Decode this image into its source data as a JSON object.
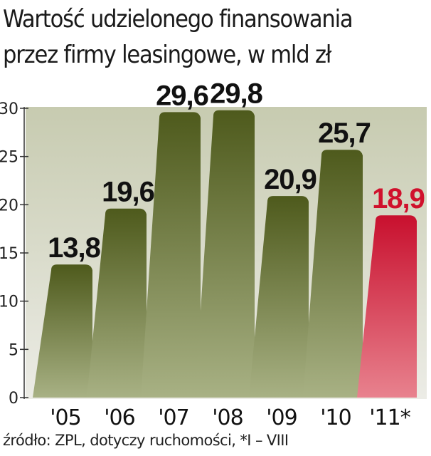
{
  "title_line1": "Wartość udzielonego finansowania",
  "title_line2": "przez firmy leasingowe, w mld zł",
  "source": "źródło: ZPL, dotyczy ruchomości, *I – VIII",
  "chart_data": {
    "type": "bar",
    "categories": [
      "'05",
      "'06",
      "'07",
      "'08",
      "'09",
      "'10",
      "'11*"
    ],
    "values": [
      13.8,
      19.6,
      29.6,
      29.8,
      20.9,
      25.7,
      18.9
    ],
    "value_labels": [
      "13,8",
      "19,6",
      "29,6",
      "29,8",
      "20,9",
      "25,7",
      "18,9"
    ],
    "highlight_index": 6,
    "ylim": [
      0,
      30
    ],
    "yticks": [
      0,
      5,
      10,
      15,
      20,
      25,
      30
    ],
    "grid": false,
    "colors": {
      "bar_top": "#4e5a1c",
      "bar_bottom": "#a8b184",
      "highlight_top": "#c8102e",
      "highlight_bottom": "#e8828e",
      "highlight_label": "#d0102c",
      "label": "#111111",
      "background_top": "#c7cbb0",
      "background_bottom": "#ecece6"
    }
  }
}
